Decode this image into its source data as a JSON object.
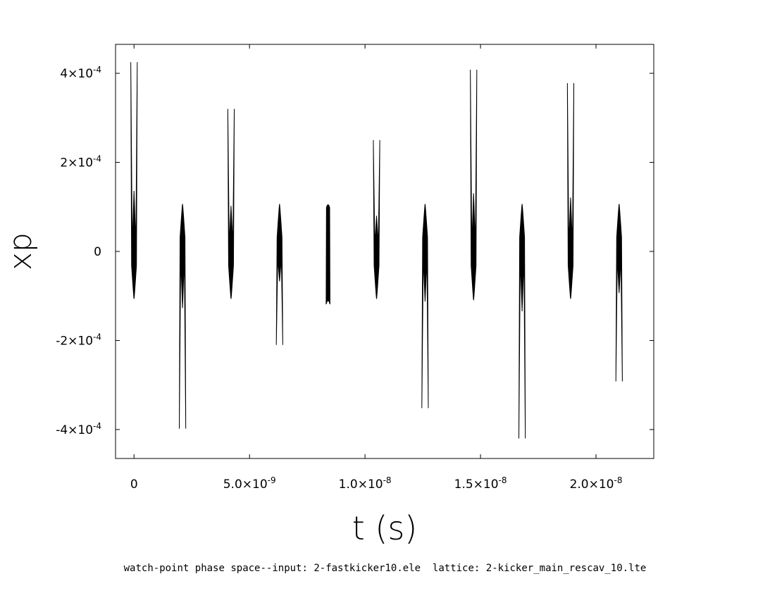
{
  "chart_data": {
    "type": "scatter",
    "title": "",
    "xlabel": "t (s)",
    "ylabel": "xp",
    "caption": "watch-point phase space--input: 2-fastkicker10.ele  lattice: 2-kicker_main_rescav_10.lte",
    "xlim": [
      -8e-10,
      2.25e-08
    ],
    "ylim": [
      -0.000465,
      0.000465
    ],
    "grid": false,
    "legend": "none",
    "x_ticks": [
      {
        "value": 0,
        "mant": "0",
        "exp": ""
      },
      {
        "value": 5e-09,
        "mant": "5.0×10",
        "exp": "-9"
      },
      {
        "value": 1e-08,
        "mant": "1.0×10",
        "exp": "-8"
      },
      {
        "value": 1.5e-08,
        "mant": "1.5×10",
        "exp": "-8"
      },
      {
        "value": 2e-08,
        "mant": "2.0×10",
        "exp": "-8"
      }
    ],
    "y_ticks": [
      {
        "value": 0.0004,
        "mant": "4×10",
        "exp": "-4"
      },
      {
        "value": 0.0002,
        "mant": "2×10",
        "exp": "-4"
      },
      {
        "value": 0,
        "mant": "0",
        "exp": ""
      },
      {
        "value": -0.0002,
        "mant": "-2×10",
        "exp": "-4"
      },
      {
        "value": -0.0004,
        "mant": "-4×10",
        "exp": "-4"
      }
    ],
    "bunches": [
      {
        "t": 0.0,
        "xp_max": 0.000425,
        "xp_min": -0.000105
      },
      {
        "t": 2.1e-09,
        "xp_max": 0.000105,
        "xp_min": -0.000398
      },
      {
        "t": 4.2e-09,
        "xp_max": 0.00032,
        "xp_min": -0.000105
      },
      {
        "t": 6.3e-09,
        "xp_max": 0.000105,
        "xp_min": -0.00021
      },
      {
        "t": 8.4e-09,
        "xp_max": 0.000105,
        "xp_min": -0.000125
      },
      {
        "t": 1.05e-08,
        "xp_max": 0.00025,
        "xp_min": -0.000105
      },
      {
        "t": 1.26e-08,
        "xp_max": 0.000105,
        "xp_min": -0.000352
      },
      {
        "t": 1.47e-08,
        "xp_max": 0.000408,
        "xp_min": -0.000108
      },
      {
        "t": 1.68e-08,
        "xp_max": 0.000105,
        "xp_min": -0.00042
      },
      {
        "t": 1.89e-08,
        "xp_max": 0.000378,
        "xp_min": -0.000105
      },
      {
        "t": 2.1e-08,
        "xp_max": 0.000105,
        "xp_min": -0.000292
      }
    ],
    "bunch_halfwidth_s": 1.4e-10,
    "color": "#000000"
  }
}
